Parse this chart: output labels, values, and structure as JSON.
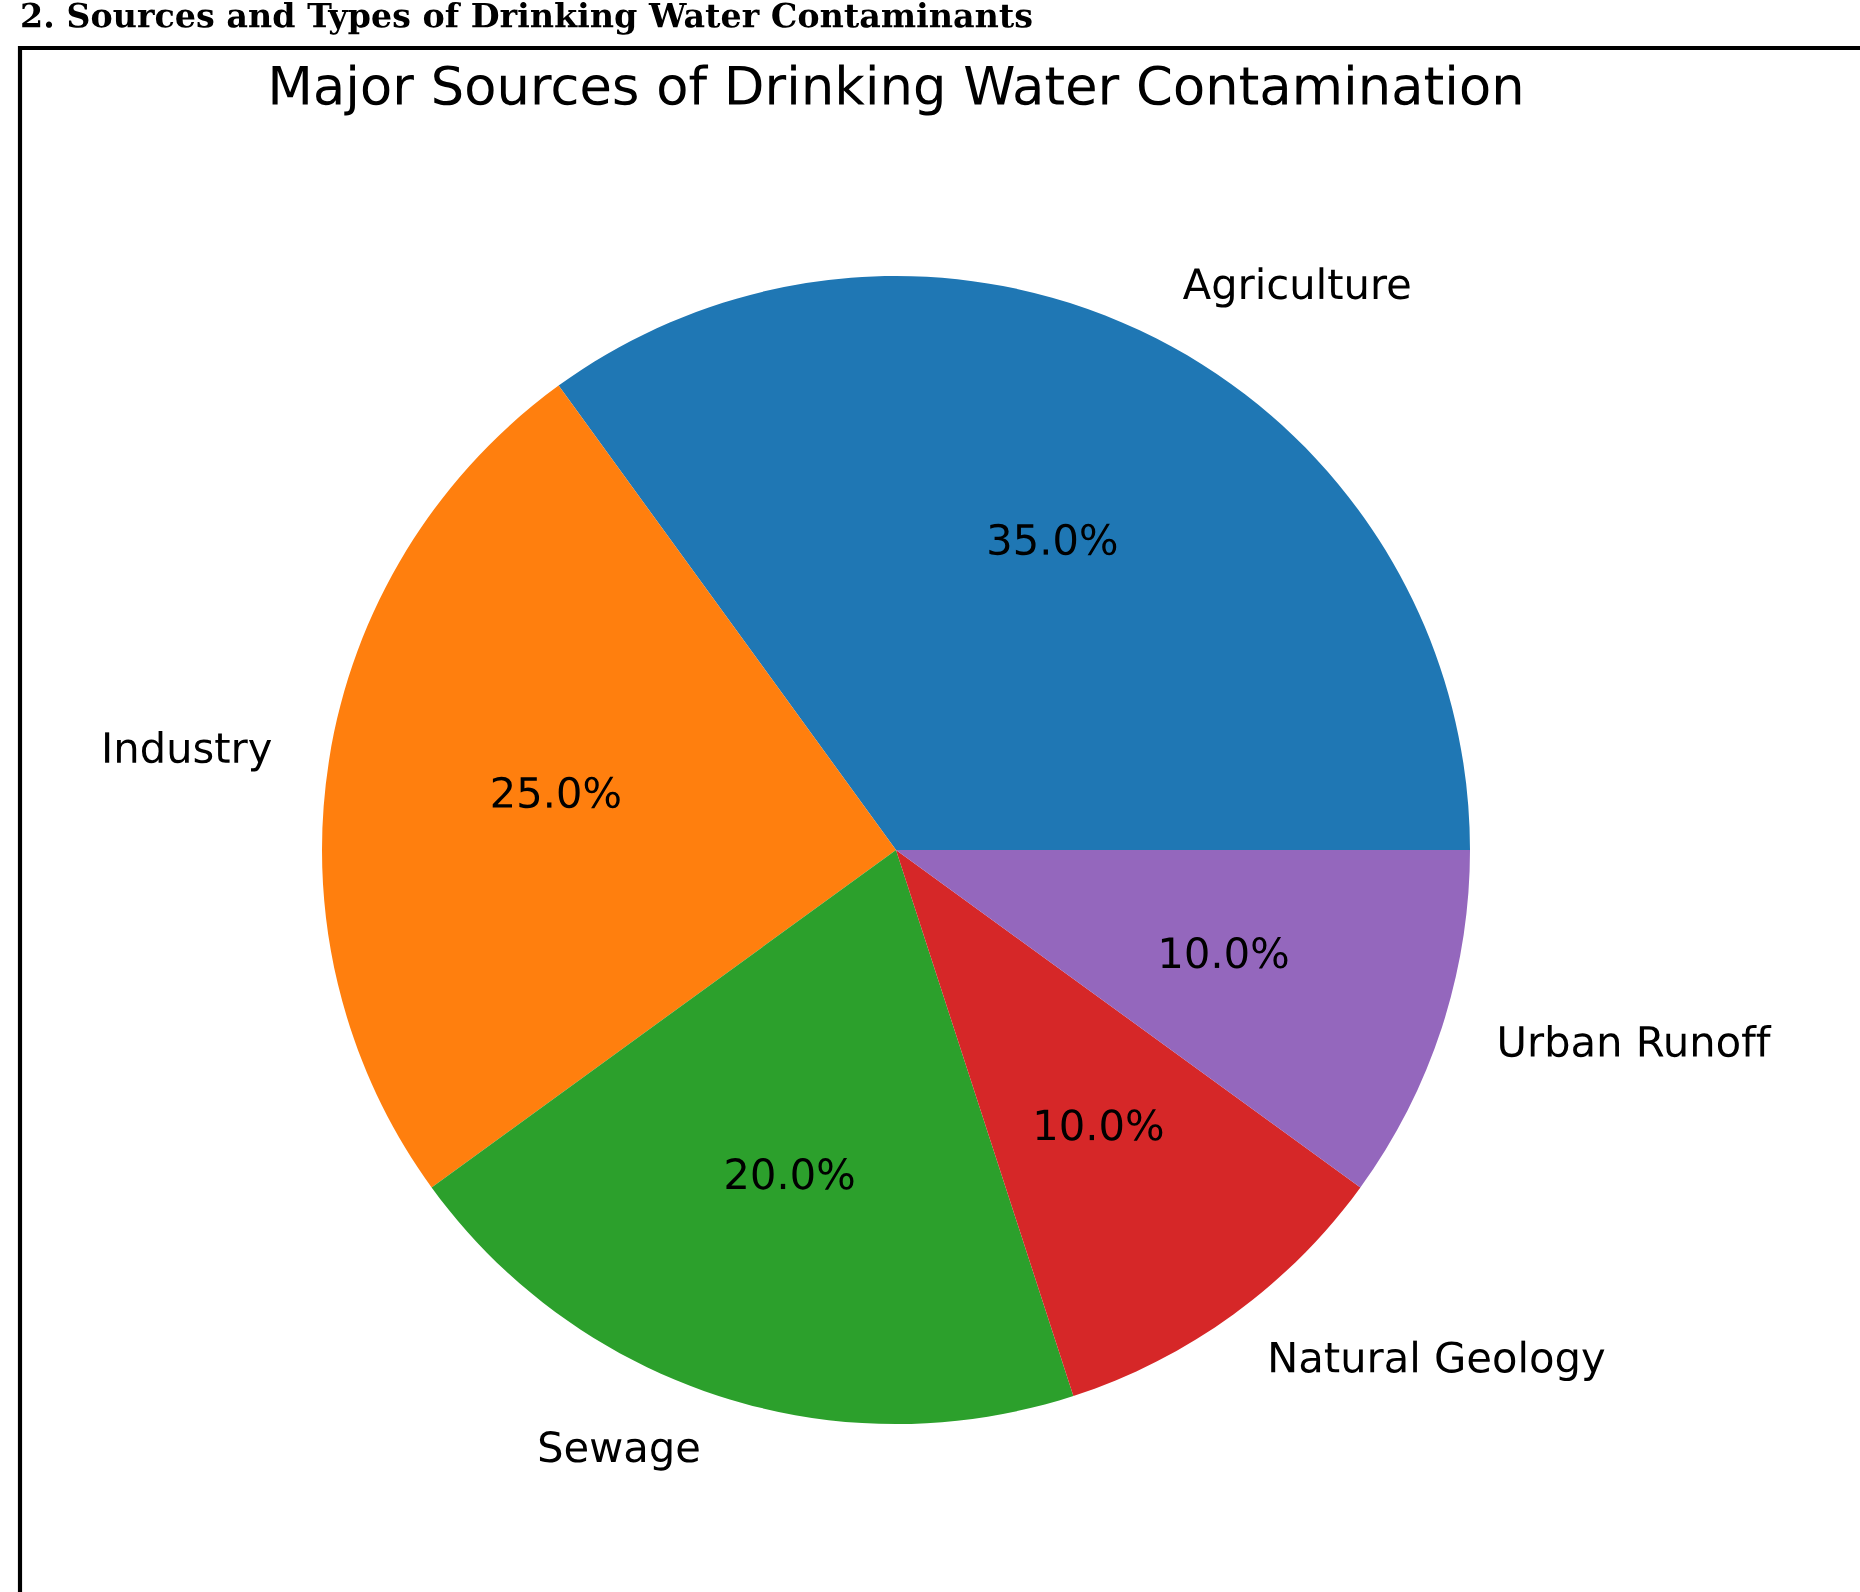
{
  "chart_data": {
    "type": "pie",
    "title": "Major Sources of Drinking Water Contamination",
    "annotations": [
      "2. Sources and Types of Drinking Water Contaminants"
    ],
    "categories": [
      "Agriculture",
      "Industry",
      "Sewage",
      "Natural Geology",
      "Urban Runoff"
    ],
    "values": [
      35,
      25,
      20,
      10,
      10
    ],
    "colors": [
      "#1f77b4",
      "#ff7f0e",
      "#2ca02c",
      "#d62728",
      "#9467bd"
    ],
    "value_labels": [
      "35.0%",
      "25.0%",
      "20.0%",
      "10.0%",
      "10.0%"
    ]
  }
}
